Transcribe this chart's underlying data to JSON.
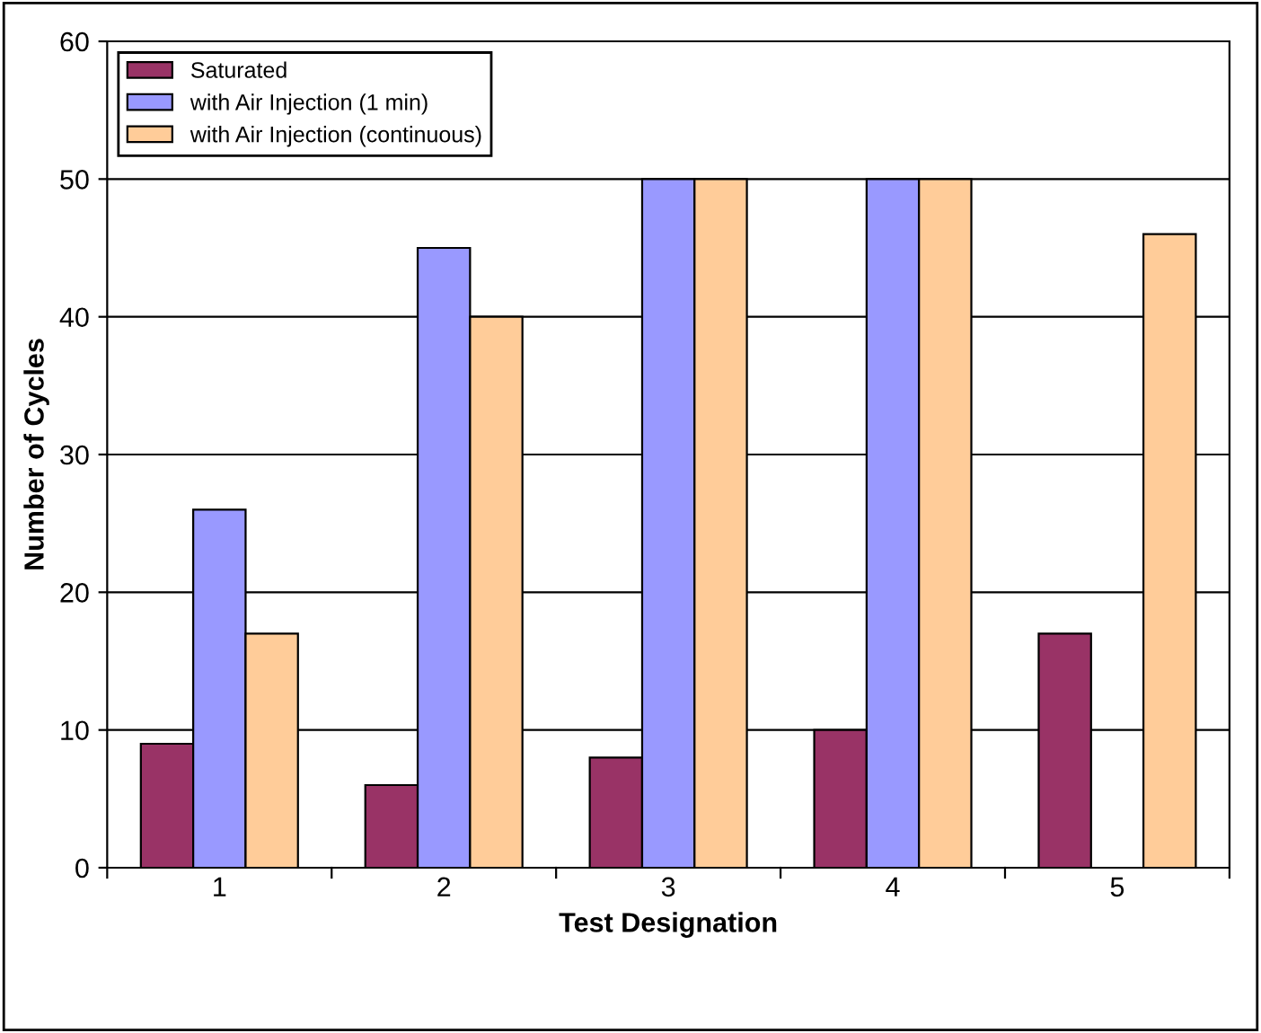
{
  "chart_data": {
    "type": "bar",
    "xlabel": "Test Designation",
    "ylabel": "Number of Cycles",
    "categories": [
      "1",
      "2",
      "3",
      "4",
      "5"
    ],
    "series": [
      {
        "name": "Saturated",
        "color": "#993366",
        "values": [
          9,
          6,
          8,
          10,
          17
        ]
      },
      {
        "name": "with Air Injection (1 min)",
        "color": "#9999ff",
        "values": [
          26,
          45,
          50,
          50,
          null
        ]
      },
      {
        "name": "with Air Injection (continuous)",
        "color": "#ffcc99",
        "values": [
          17,
          40,
          50,
          50,
          46
        ]
      }
    ],
    "ylim": [
      0,
      60
    ],
    "yticks": [
      0,
      10,
      20,
      30,
      40,
      50,
      60
    ],
    "grid": "y",
    "legend": "top left"
  }
}
